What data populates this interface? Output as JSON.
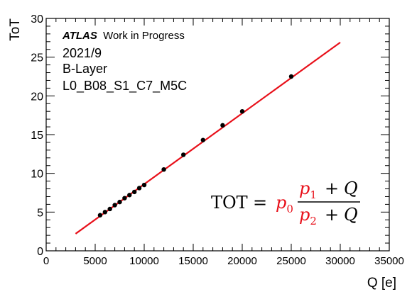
{
  "chart_data": {
    "type": "scatter",
    "title": "",
    "xlabel": "Q [e]",
    "ylabel": "ToT",
    "xlim": [
      0,
      35000
    ],
    "ylim": [
      0,
      30
    ],
    "x_ticks": [
      0,
      5000,
      10000,
      15000,
      20000,
      25000,
      30000,
      35000
    ],
    "x_tick_labels": [
      "0",
      "5000",
      "10000",
      "15000",
      "20000",
      "25000",
      "30000",
      "35000"
    ],
    "y_ticks": [
      0,
      5,
      10,
      15,
      20,
      25,
      30
    ],
    "y_tick_labels": [
      "0",
      "5",
      "10",
      "15",
      "20",
      "25",
      "30"
    ],
    "grid": false,
    "legend": "none",
    "annotations": {
      "atlas": "ATLAS",
      "work": "Work in Progress",
      "date": "2021/9",
      "layer": "B-Layer",
      "module": "L0_B08_S1_C7_M5C"
    },
    "formula": {
      "lhs": "TOT",
      "eq": "=",
      "p0": "p",
      "p0_sub": "0",
      "p1": "p",
      "p1_sub": "1",
      "p2": "p",
      "p2_sub": "2",
      "plus": "+",
      "q": "Q"
    },
    "colors": {
      "fit": "#e8101a",
      "points": "#000000",
      "formula_params": "#e8101a"
    },
    "points": {
      "x": [
        5500,
        6000,
        6500,
        7000,
        7500,
        8000,
        8500,
        9000,
        9500,
        10000,
        12000,
        14000,
        16000,
        18000,
        20000,
        25000
      ],
      "y": [
        4.6,
        5.0,
        5.4,
        5.9,
        6.3,
        6.8,
        7.2,
        7.6,
        8.1,
        8.5,
        10.5,
        12.4,
        14.3,
        16.2,
        18.0,
        22.5
      ]
    },
    "fit_line": {
      "x": [
        3000,
        30000
      ],
      "y": [
        2.2,
        26.9
      ]
    }
  }
}
